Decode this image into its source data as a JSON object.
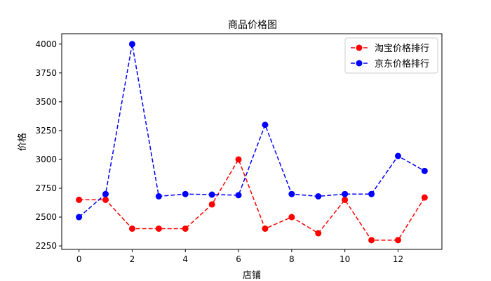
{
  "chart_data": {
    "type": "line",
    "title": "商品价格图",
    "xlabel": "店铺",
    "ylabel": "价格",
    "x": [
      0,
      1,
      2,
      3,
      4,
      5,
      6,
      7,
      8,
      9,
      10,
      11,
      12,
      13
    ],
    "xlim": [
      -0.65,
      13.65
    ],
    "ylim": [
      2220,
      4090
    ],
    "xticks": [
      0,
      2,
      4,
      6,
      8,
      10,
      12
    ],
    "yticks": [
      2250,
      2500,
      2750,
      3000,
      3250,
      3500,
      3750,
      4000
    ],
    "grid": false,
    "legend_position": "top-right",
    "series": [
      {
        "name": "淘宝价格排行",
        "color": "#ff0000",
        "line_style": "dashed",
        "marker": "circle",
        "values": [
          2650,
          2650,
          2400,
          2400,
          2400,
          2610,
          3000,
          2400,
          2500,
          2360,
          2650,
          2300,
          2300,
          2670
        ]
      },
      {
        "name": "京东价格排行",
        "color": "#0000ff",
        "line_style": "dashed",
        "marker": "circle",
        "values": [
          2500,
          2700,
          4000,
          2680,
          2700,
          2695,
          2690,
          3300,
          2700,
          2680,
          2700,
          2700,
          3030,
          2900
        ]
      }
    ]
  }
}
